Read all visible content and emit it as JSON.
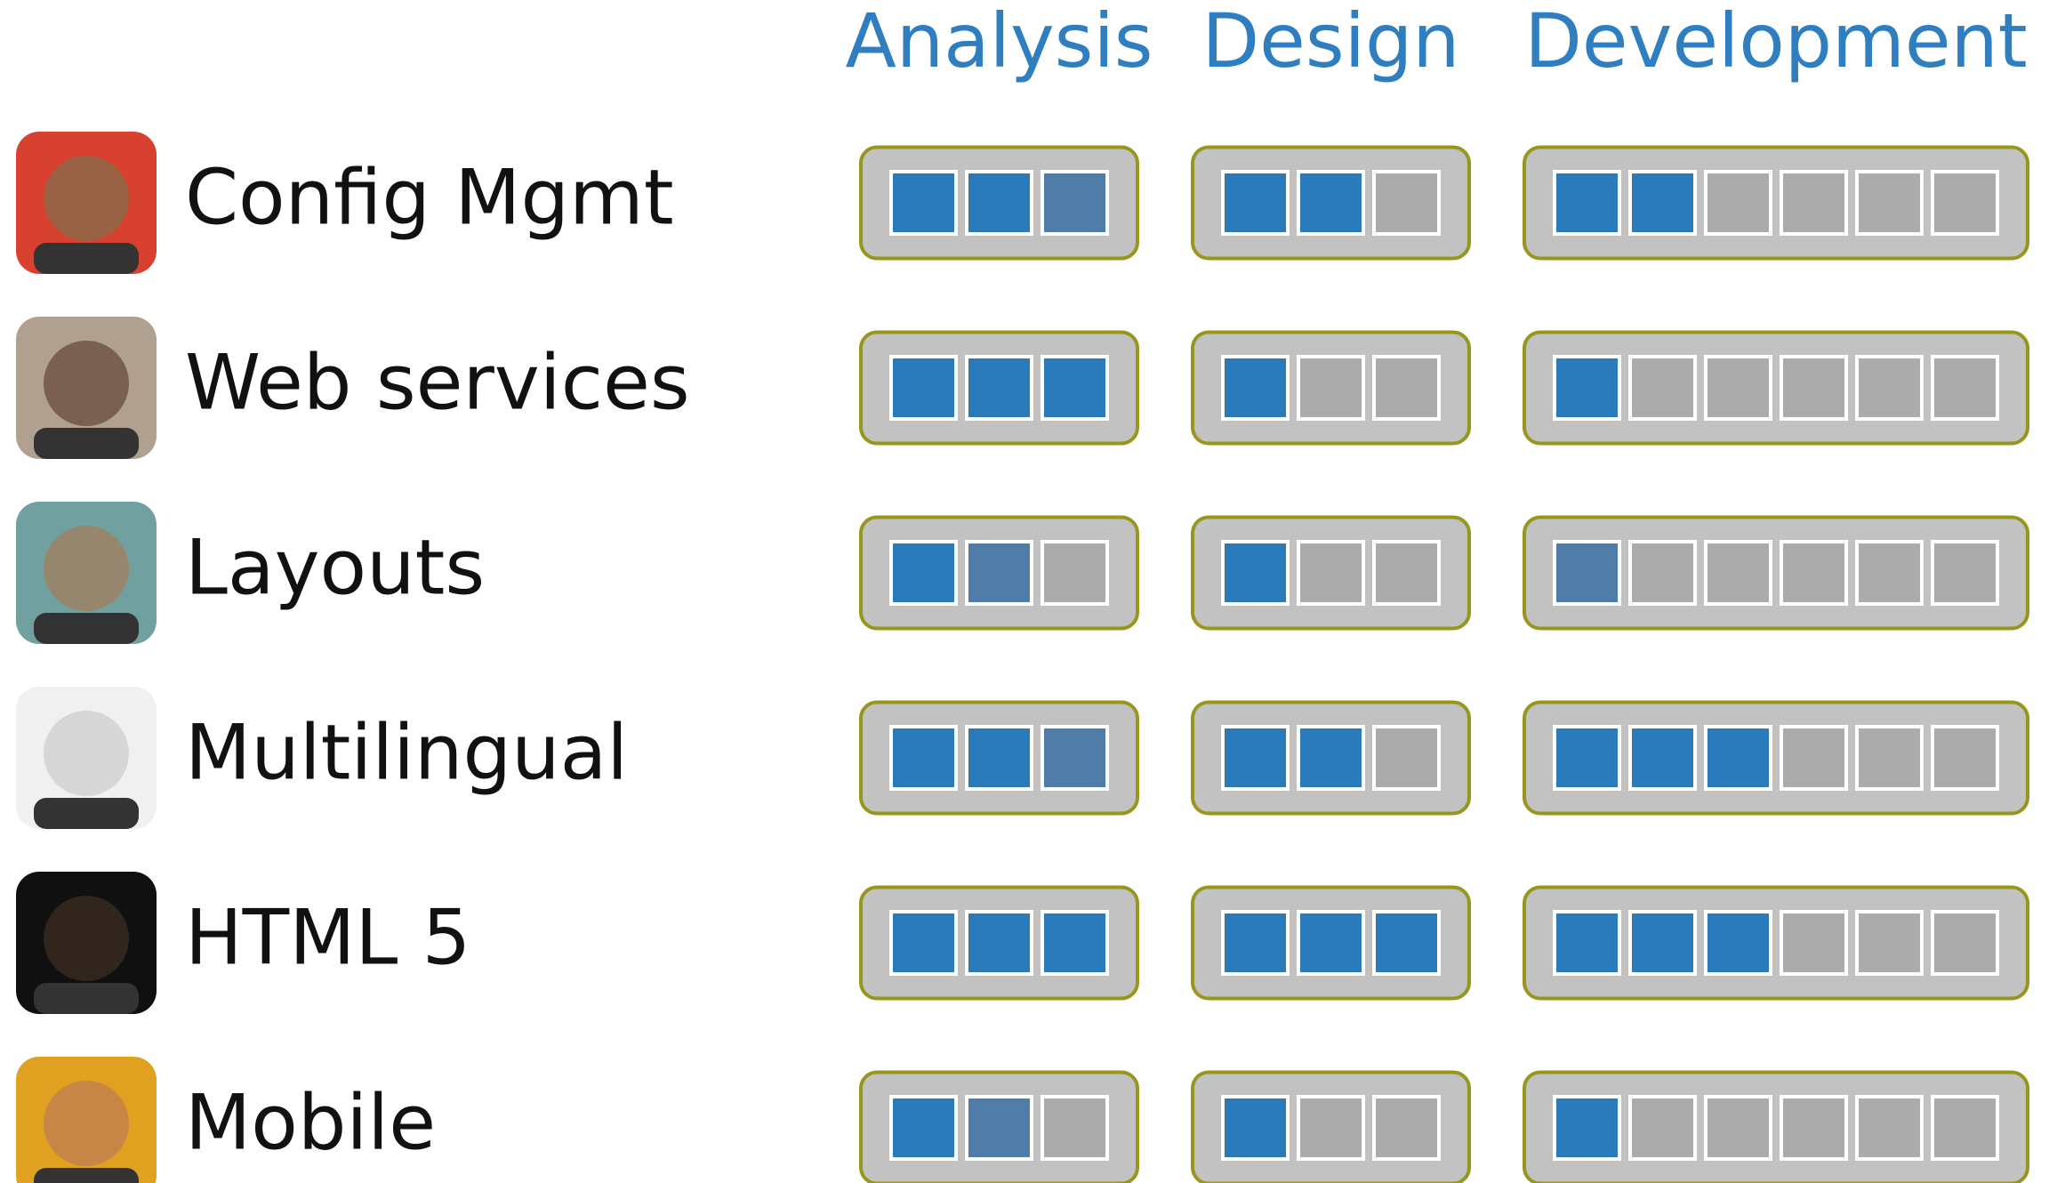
{
  "phases": [
    {
      "name": "Analysis",
      "cells": 3
    },
    {
      "name": "Design",
      "cells": 3
    },
    {
      "name": "Development",
      "cells": 6
    }
  ],
  "rows": [
    {
      "label": "Config Mgmt",
      "progress": [
        {
          "done": 2,
          "active": 1
        },
        {
          "done": 2,
          "active": 0
        },
        {
          "done": 2,
          "active": 0
        }
      ]
    },
    {
      "label": "Web services",
      "progress": [
        {
          "done": 3,
          "active": 0
        },
        {
          "done": 1,
          "active": 0
        },
        {
          "done": 1,
          "active": 0
        }
      ]
    },
    {
      "label": "Layouts",
      "progress": [
        {
          "done": 1,
          "active": 1
        },
        {
          "done": 1,
          "active": 0
        },
        {
          "done": 0,
          "active": 1
        }
      ]
    },
    {
      "label": "Multilingual",
      "progress": [
        {
          "done": 2,
          "active": 1
        },
        {
          "done": 2,
          "active": 0
        },
        {
          "done": 3,
          "active": 0
        }
      ]
    },
    {
      "label": "HTML 5",
      "progress": [
        {
          "done": 3,
          "active": 0
        },
        {
          "done": 3,
          "active": 0
        },
        {
          "done": 3,
          "active": 0
        }
      ]
    },
    {
      "label": "Mobile",
      "progress": [
        {
          "done": 1,
          "active": 1
        },
        {
          "done": 1,
          "active": 0
        },
        {
          "done": 1,
          "active": 0
        }
      ]
    }
  ]
}
